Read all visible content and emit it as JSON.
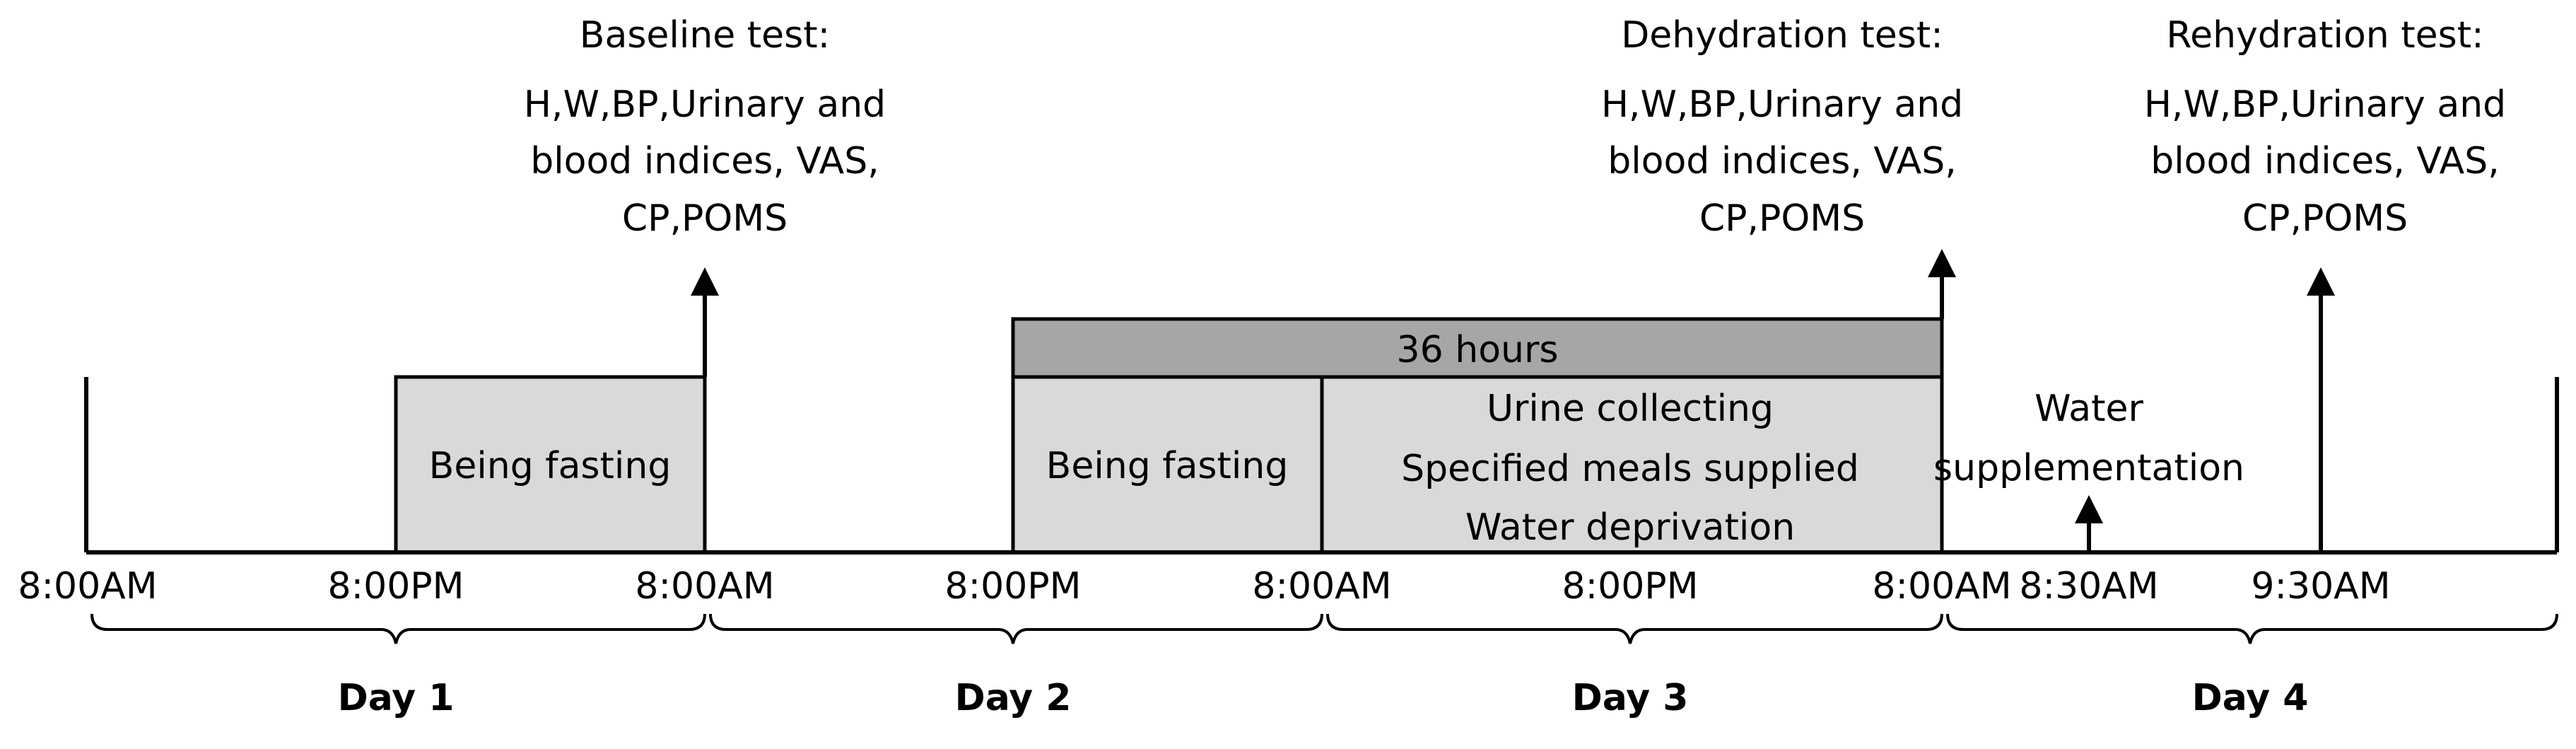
{
  "periods": {
    "fasting_1": "Being fasting",
    "fasting_2": "Being fasting",
    "duration": "36 hours",
    "day3_lines": [
      "Urine collecting",
      "Specified meals supplied",
      "Water deprivation"
    ],
    "water_lines": [
      "Water",
      "supplementation"
    ]
  },
  "tests": {
    "baseline": {
      "title": "Baseline test:",
      "lines": [
        "H,W,BP,Urinary and",
        "blood indices, VAS,",
        "CP,POMS"
      ]
    },
    "dehydration": {
      "title": "Dehydration test:",
      "lines": [
        "H,W,BP,Urinary and",
        "blood indices, VAS,",
        "CP,POMS"
      ]
    },
    "rehydration": {
      "title": "Rehydration test:",
      "lines": [
        "H,W,BP,Urinary and",
        "blood indices, VAS,",
        "CP,POMS"
      ]
    }
  },
  "times": [
    "8:00AM",
    "8:00PM",
    "8:00AM",
    "8:00PM",
    "8:00AM",
    "8:00PM",
    "8:00AM",
    "8:30AM",
    "9:30AM"
  ],
  "days": [
    "Day 1",
    "Day 2",
    "Day 3",
    "Day 4"
  ]
}
